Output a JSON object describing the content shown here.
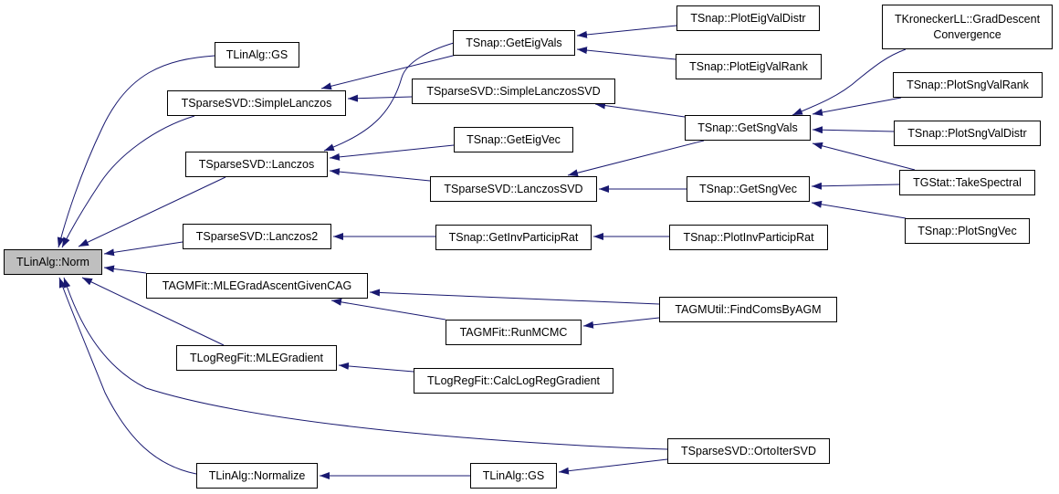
{
  "graph": {
    "root": "norm",
    "edge_color": "#191970",
    "root_fill": "#bfbfbf",
    "nodes": [
      {
        "id": "norm",
        "label": "TLinAlg::Norm"
      },
      {
        "id": "gs_top",
        "label": "TLinAlg::GS"
      },
      {
        "id": "simple_lanczos",
        "label": "TSparseSVD::SimpleLanczos"
      },
      {
        "id": "lanczos",
        "label": "TSparseSVD::Lanczos"
      },
      {
        "id": "lanczos2",
        "label": "TSparseSVD::Lanczos2"
      },
      {
        "id": "mle_grad_ascent",
        "label": "TAGMFit::MLEGradAscentGivenCAG"
      },
      {
        "id": "mle_gradient",
        "label": "TLogRegFit::MLEGradient"
      },
      {
        "id": "normalize",
        "label": "TLinAlg::Normalize"
      },
      {
        "id": "get_eig_vals",
        "label": "TSnap::GetEigVals"
      },
      {
        "id": "simple_lanczos_svd",
        "label": "TSparseSVD::SimpleLanczosSVD"
      },
      {
        "id": "get_eig_vec",
        "label": "TSnap::GetEigVec"
      },
      {
        "id": "lanczos_svd",
        "label": "TSparseSVD::LanczosSVD"
      },
      {
        "id": "get_inv_particip_rat",
        "label": "TSnap::GetInvParticipRat"
      },
      {
        "id": "run_mcmc",
        "label": "TAGMFit::RunMCMC"
      },
      {
        "id": "calc_log_reg_gradient",
        "label": "TLogRegFit::CalcLogRegGradient"
      },
      {
        "id": "gs_bottom",
        "label": "TLinAlg::GS"
      },
      {
        "id": "plot_eig_val_distr",
        "label": "TSnap::PlotEigValDistr"
      },
      {
        "id": "plot_eig_val_rank",
        "label": "TSnap::PlotEigValRank"
      },
      {
        "id": "get_sng_vals",
        "label": "TSnap::GetSngVals"
      },
      {
        "id": "get_sng_vec",
        "label": "TSnap::GetSngVec"
      },
      {
        "id": "plot_inv_particip_rat",
        "label": "TSnap::PlotInvParticipRat"
      },
      {
        "id": "find_coms_by_agm",
        "label": "TAGMUtil::FindComsByAGM"
      },
      {
        "id": "orto_iter_svd",
        "label": "TSparseSVD::OrtoIterSVD"
      },
      {
        "id": "grad_descent_convergence",
        "label": "TKroneckerLL::GradDescent\nConvergence"
      },
      {
        "id": "plot_sng_val_rank",
        "label": "TSnap::PlotSngValRank"
      },
      {
        "id": "plot_sng_val_distr",
        "label": "TSnap::PlotSngValDistr"
      },
      {
        "id": "take_spectral",
        "label": "TGStat::TakeSpectral"
      },
      {
        "id": "plot_sng_vec",
        "label": "TSnap::PlotSngVec"
      }
    ],
    "edges": [
      {
        "from": "gs_top",
        "to": "norm"
      },
      {
        "from": "simple_lanczos",
        "to": "norm"
      },
      {
        "from": "lanczos",
        "to": "norm"
      },
      {
        "from": "lanczos2",
        "to": "norm"
      },
      {
        "from": "mle_grad_ascent",
        "to": "norm"
      },
      {
        "from": "mle_gradient",
        "to": "norm"
      },
      {
        "from": "orto_iter_svd",
        "to": "norm"
      },
      {
        "from": "normalize",
        "to": "norm"
      },
      {
        "from": "get_eig_vals",
        "to": "simple_lanczos"
      },
      {
        "from": "get_eig_vals",
        "to": "lanczos"
      },
      {
        "from": "simple_lanczos_svd",
        "to": "simple_lanczos"
      },
      {
        "from": "get_eig_vec",
        "to": "lanczos"
      },
      {
        "from": "lanczos_svd",
        "to": "lanczos"
      },
      {
        "from": "get_inv_particip_rat",
        "to": "lanczos2"
      },
      {
        "from": "plot_eig_val_distr",
        "to": "get_eig_vals"
      },
      {
        "from": "plot_eig_val_rank",
        "to": "get_eig_vals"
      },
      {
        "from": "get_sng_vals",
        "to": "simple_lanczos_svd"
      },
      {
        "from": "get_sng_vals",
        "to": "lanczos_svd"
      },
      {
        "from": "get_sng_vec",
        "to": "lanczos_svd"
      },
      {
        "from": "grad_descent_convergence",
        "to": "get_sng_vals"
      },
      {
        "from": "plot_sng_val_rank",
        "to": "get_sng_vals"
      },
      {
        "from": "plot_sng_val_distr",
        "to": "get_sng_vals"
      },
      {
        "from": "take_spectral",
        "to": "get_sng_vals"
      },
      {
        "from": "take_spectral",
        "to": "get_sng_vec"
      },
      {
        "from": "plot_sng_vec",
        "to": "get_sng_vec"
      },
      {
        "from": "plot_inv_particip_rat",
        "to": "get_inv_particip_rat"
      },
      {
        "from": "find_coms_by_agm",
        "to": "mle_grad_ascent"
      },
      {
        "from": "find_coms_by_agm",
        "to": "run_mcmc"
      },
      {
        "from": "run_mcmc",
        "to": "mle_grad_ascent"
      },
      {
        "from": "calc_log_reg_gradient",
        "to": "mle_gradient"
      },
      {
        "from": "orto_iter_svd",
        "to": "gs_bottom"
      },
      {
        "from": "gs_bottom",
        "to": "normalize"
      }
    ]
  }
}
